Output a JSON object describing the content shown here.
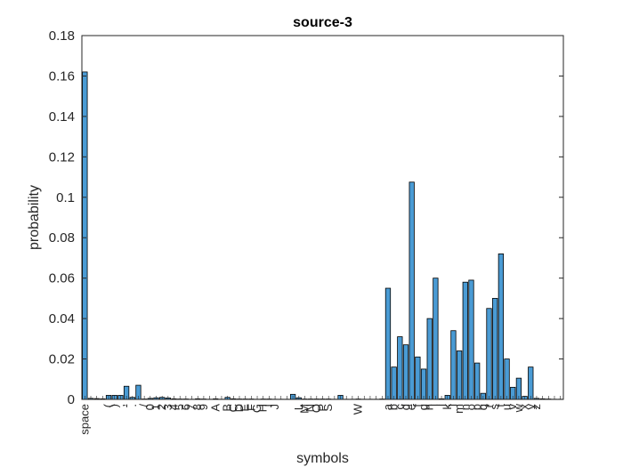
{
  "chart_data": {
    "type": "bar",
    "title": "source-3",
    "xlabel": "symbols",
    "ylabel": "probability",
    "ylim": [
      0,
      0.18
    ],
    "yticks": [
      0,
      0.02,
      0.04,
      0.06,
      0.08,
      0.1,
      0.12,
      0.14,
      0.16,
      0.18
    ],
    "ytick_labels": [
      "0",
      "0.02",
      "0.04",
      "0.06",
      "0.08",
      "0.1",
      "0.12",
      "0.14",
      "0.16",
      "0.18"
    ],
    "grid": false,
    "bar_color": "#4A9BD4",
    "bar_edge_color": "#000000",
    "symbols": [
      {
        "label": "space",
        "value": 0.162
      },
      {
        "label": "",
        "value": 0.0005
      },
      {
        "label": "",
        "value": 0.0004
      },
      {
        "label": "",
        "value": 0.0003
      },
      {
        "label": "(",
        "value": 0.002
      },
      {
        "label": ")",
        "value": 0.002
      },
      {
        "label": ",",
        "value": 0.002
      },
      {
        "label": "-",
        "value": 0.0065
      },
      {
        "label": ".",
        "value": 0.001
      },
      {
        "label": "",
        "value": 0.007
      },
      {
        "label": "/",
        "value": 0.0002
      },
      {
        "label": "0",
        "value": 0.0005
      },
      {
        "label": "1",
        "value": 0.0008
      },
      {
        "label": "2",
        "value": 0.001
      },
      {
        "label": "3",
        "value": 0.0007
      },
      {
        "label": "4",
        "value": 0.0003
      },
      {
        "label": "5",
        "value": 0.0002
      },
      {
        "label": "6",
        "value": 0.0002
      },
      {
        "label": "7",
        "value": 0.0001
      },
      {
        "label": "8",
        "value": 0.0003
      },
      {
        "label": "9",
        "value": 0.0002
      },
      {
        "label": "",
        "value": 0.0001
      },
      {
        "label": "A",
        "value": 0.0003
      },
      {
        "label": "",
        "value": 0.0001
      },
      {
        "label": "B",
        "value": 0.001
      },
      {
        "label": "C",
        "value": 0.0003
      },
      {
        "label": "D",
        "value": 0.0002
      },
      {
        "label": "E",
        "value": 0.0002
      },
      {
        "label": "F",
        "value": 0.0002
      },
      {
        "label": "G",
        "value": 0.0001
      },
      {
        "label": "H",
        "value": 0.0002
      },
      {
        "label": "I",
        "value": 0.0002
      },
      {
        "label": "J",
        "value": 0.0001
      },
      {
        "label": "",
        "value": 0.0001
      },
      {
        "label": "",
        "value": 0.0001
      },
      {
        "label": "",
        "value": 0.0025
      },
      {
        "label": "L",
        "value": 0.0008
      },
      {
        "label": "M",
        "value": 0.0002
      },
      {
        "label": "N",
        "value": 0.0002
      },
      {
        "label": "O",
        "value": 0.0002
      },
      {
        "label": "P",
        "value": 0.0002
      },
      {
        "label": "S",
        "value": 0.0002
      },
      {
        "label": "",
        "value": 0.0001
      },
      {
        "label": "",
        "value": 0.002
      },
      {
        "label": "",
        "value": 0.0001
      },
      {
        "label": "",
        "value": 0.0001
      },
      {
        "label": "W",
        "value": 0.0002
      },
      {
        "label": "",
        "value": 0.0001
      },
      {
        "label": "",
        "value": 0.0001
      },
      {
        "label": "",
        "value": 0.0001
      },
      {
        "label": "",
        "value": 0.0002
      },
      {
        "label": "a",
        "value": 0.055
      },
      {
        "label": "b",
        "value": 0.016
      },
      {
        "label": "c",
        "value": 0.031
      },
      {
        "label": "d",
        "value": 0.027
      },
      {
        "label": "e",
        "value": 0.1075
      },
      {
        "label": "f",
        "value": 0.021
      },
      {
        "label": "g",
        "value": 0.015
      },
      {
        "label": "h",
        "value": 0.04
      },
      {
        "label": "i",
        "value": 0.06
      },
      {
        "label": "j",
        "value": 0.0003
      },
      {
        "label": "k",
        "value": 0.002
      },
      {
        "label": "l",
        "value": 0.034
      },
      {
        "label": "m",
        "value": 0.024
      },
      {
        "label": "n",
        "value": 0.058
      },
      {
        "label": "o",
        "value": 0.059
      },
      {
        "label": "p",
        "value": 0.018
      },
      {
        "label": "q",
        "value": 0.003
      },
      {
        "label": "r",
        "value": 0.045
      },
      {
        "label": "s",
        "value": 0.05
      },
      {
        "label": "t",
        "value": 0.072
      },
      {
        "label": "u",
        "value": 0.02
      },
      {
        "label": "v",
        "value": 0.006
      },
      {
        "label": "w",
        "value": 0.0105
      },
      {
        "label": "x",
        "value": 0.0015
      },
      {
        "label": "y",
        "value": 0.016
      },
      {
        "label": "z",
        "value": 0.0005
      },
      {
        "label": "",
        "value": 0.0003
      },
      {
        "label": "",
        "value": 0.0002
      },
      {
        "label": "",
        "value": 0.0001
      },
      {
        "label": "",
        "value": 0.0001
      }
    ]
  }
}
